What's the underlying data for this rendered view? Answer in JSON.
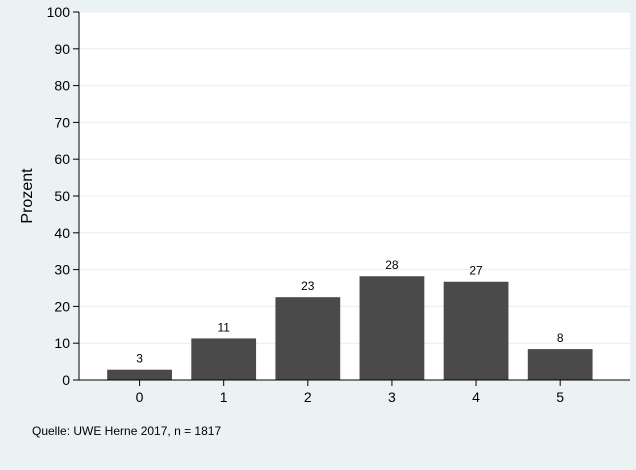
{
  "chart_data": {
    "type": "bar",
    "title": "",
    "xlabel": "",
    "ylabel": "Prozent",
    "categories": [
      "0",
      "1",
      "2",
      "3",
      "4",
      "5"
    ],
    "values": [
      2.8,
      11.3,
      22.5,
      28.2,
      26.7,
      8.4
    ],
    "data_labels": [
      "3",
      "11",
      "23",
      "28",
      "27",
      "8"
    ],
    "ylim": [
      0,
      100
    ],
    "yticks": [
      0,
      10,
      20,
      30,
      40,
      50,
      60,
      70,
      80,
      90,
      100
    ],
    "grid": true,
    "legend": "none",
    "bar_color": "#4a4a4a",
    "plot_background": "#ffffff",
    "page_background": "#eaf2f3"
  },
  "source_note": "Quelle: UWE Herne 2017, n = 1817"
}
